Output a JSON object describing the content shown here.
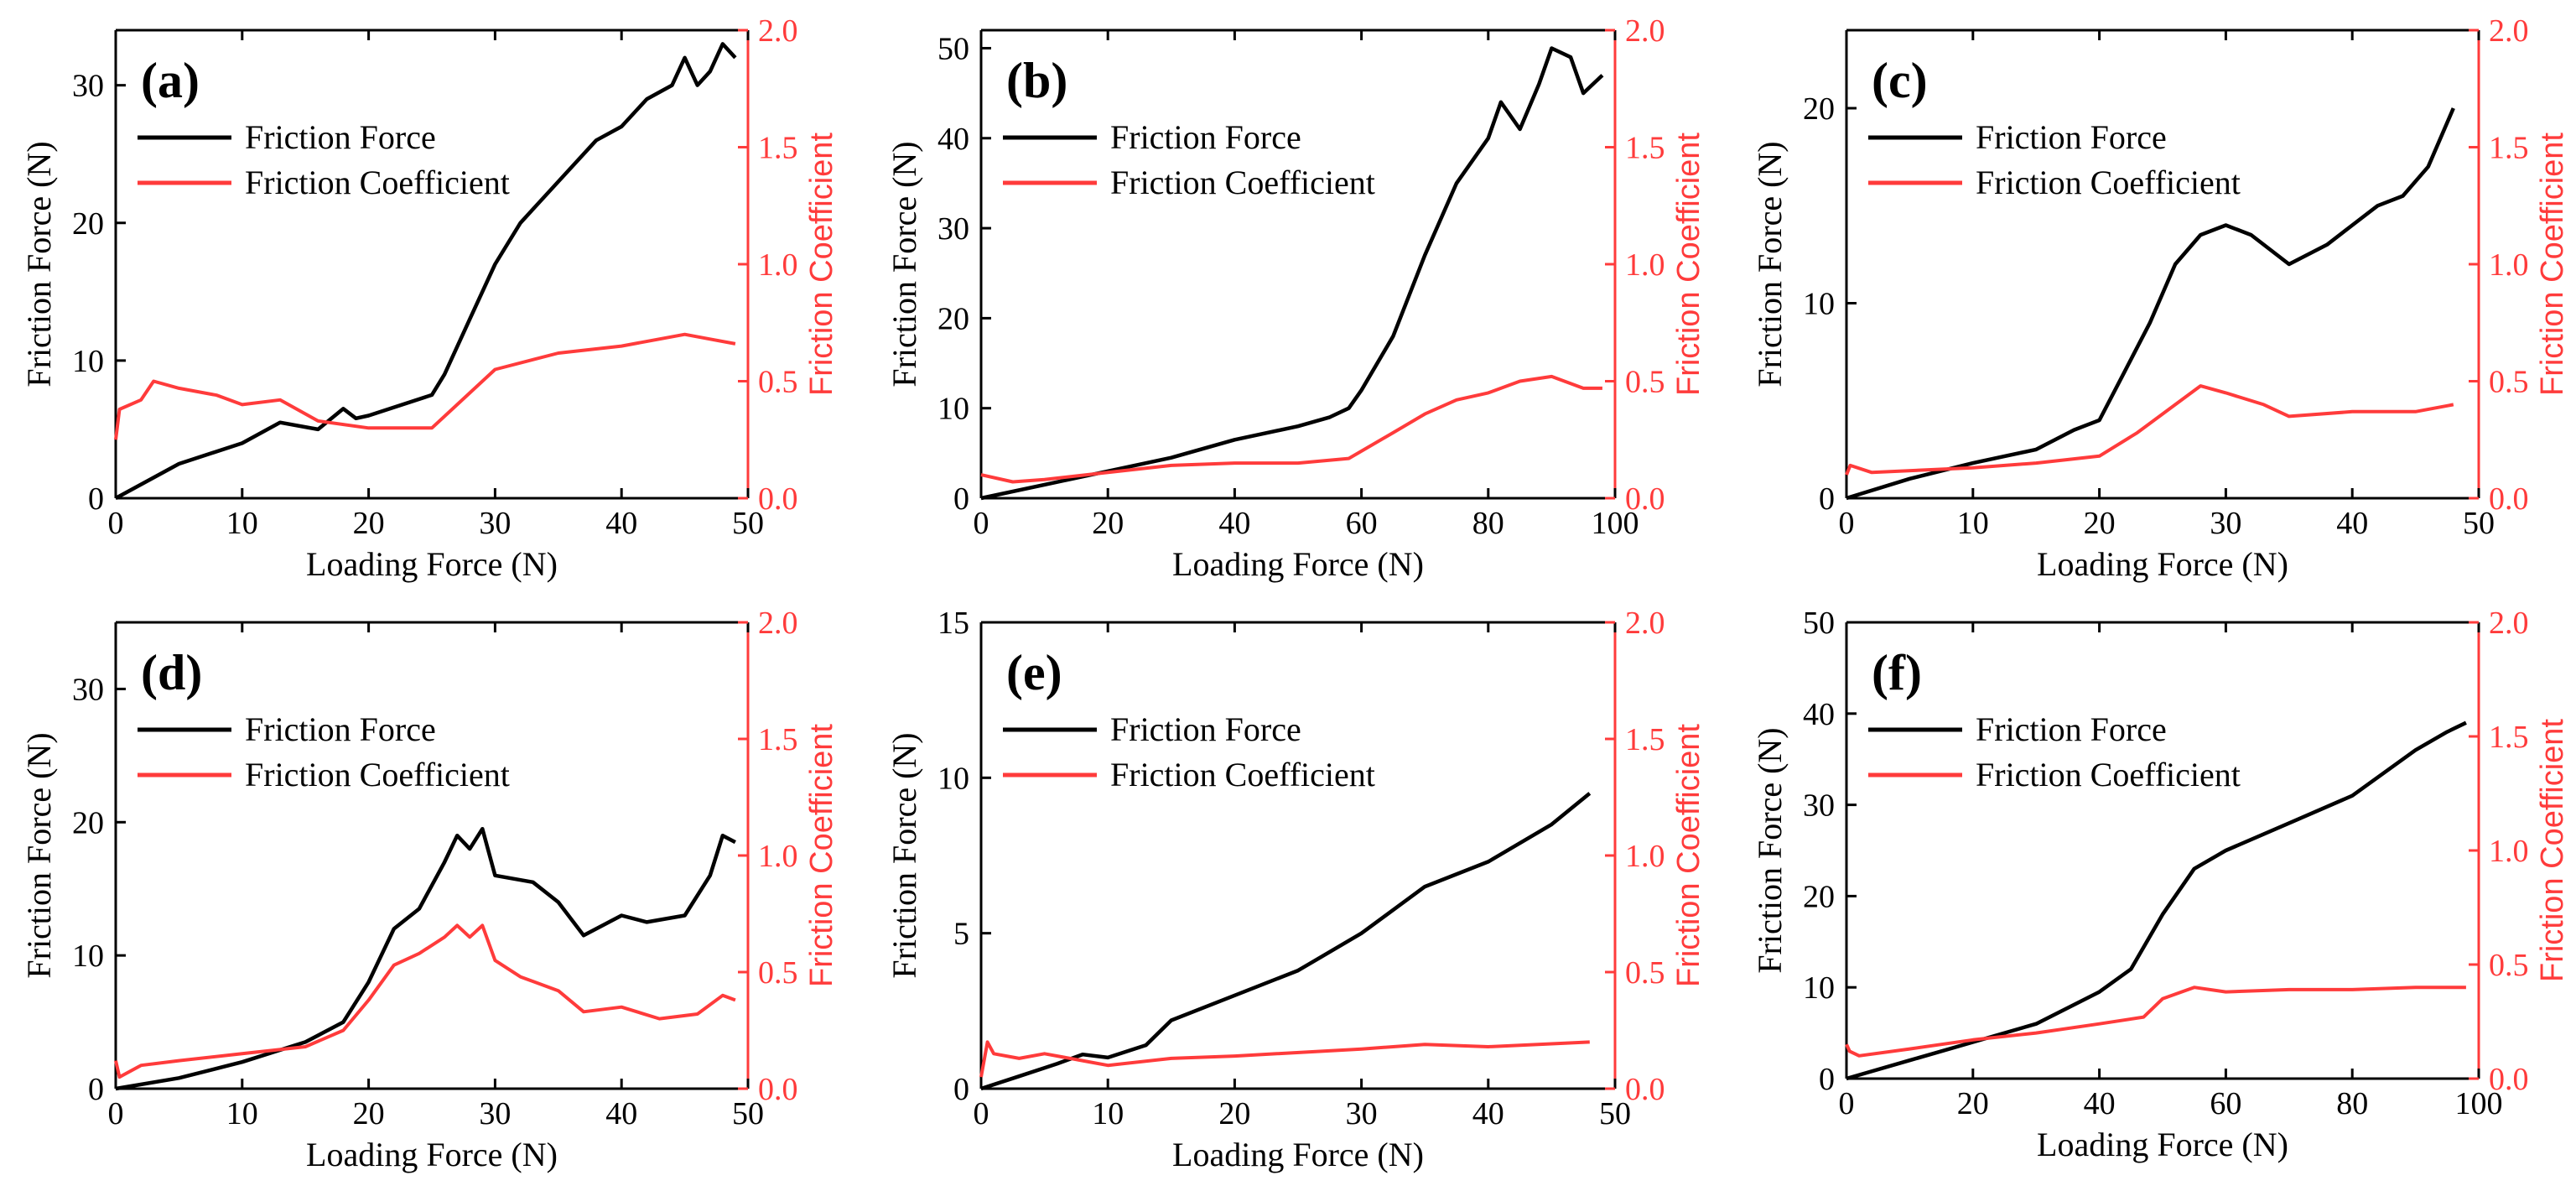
{
  "figure": {
    "description_labels": [
      "(a)",
      "(b)",
      "(c)",
      "(d)",
      "(e)",
      "(f)"
    ]
  },
  "colors": {
    "friction_force": "#000000",
    "friction_coefficient": "#ff3b3b"
  },
  "chart_data": [
    {
      "type": "line",
      "panel": "(a)",
      "xlabel": "Loading Force (N)",
      "ylabel": "Friction Force (N)",
      "y2label": "Friction Coefficient",
      "xlim": [
        0,
        50
      ],
      "ylim": [
        0,
        34
      ],
      "y2lim": [
        0,
        2.0
      ],
      "xticks": [
        0,
        10,
        20,
        30,
        40,
        50
      ],
      "yticks": [
        0,
        10,
        20,
        30
      ],
      "y2ticks": [
        0.0,
        0.5,
        1.0,
        1.5,
        2.0
      ],
      "legend": [
        "Friction Force",
        "Friction Coefficient"
      ],
      "series": [
        {
          "name": "Friction Force",
          "axis": "left",
          "x": [
            0,
            5,
            10,
            13,
            16,
            18,
            19,
            20,
            25,
            26,
            28,
            30,
            32,
            35,
            38,
            40,
            42,
            44,
            45,
            46,
            47,
            48,
            49
          ],
          "y": [
            0,
            2.5,
            4,
            5.5,
            5,
            6.5,
            5.8,
            6,
            7.5,
            9,
            13,
            17,
            20,
            23,
            26,
            27,
            29,
            30,
            32,
            30,
            31,
            33,
            32
          ]
        },
        {
          "name": "Friction Coefficient",
          "axis": "right",
          "x": [
            0,
            0.3,
            2,
            3,
            5,
            8,
            10,
            13,
            16,
            20,
            25,
            27,
            30,
            35,
            40,
            45,
            47,
            49
          ],
          "y": [
            0.25,
            0.38,
            0.42,
            0.5,
            0.47,
            0.44,
            0.4,
            0.42,
            0.33,
            0.3,
            0.3,
            0.4,
            0.55,
            0.62,
            0.65,
            0.7,
            0.68,
            0.66
          ]
        }
      ]
    },
    {
      "type": "line",
      "panel": "(b)",
      "xlabel": "Loading Force (N)",
      "ylabel": "Friction Force (N)",
      "y2label": "Friction Coefficient",
      "xlim": [
        0,
        100
      ],
      "ylim": [
        0,
        52
      ],
      "y2lim": [
        0,
        2.0
      ],
      "xticks": [
        0,
        20,
        40,
        60,
        80,
        100
      ],
      "yticks": [
        0,
        10,
        20,
        30,
        40,
        50
      ],
      "y2ticks": [
        0.0,
        0.5,
        1.0,
        1.5,
        2.0
      ],
      "legend": [
        "Friction Force",
        "Friction Coefficient"
      ],
      "series": [
        {
          "name": "Friction Force",
          "axis": "left",
          "x": [
            0,
            10,
            20,
            30,
            40,
            50,
            55,
            58,
            60,
            65,
            70,
            75,
            80,
            82,
            85,
            88,
            90,
            93,
            95,
            98
          ],
          "y": [
            0,
            1.5,
            3,
            4.5,
            6.5,
            8,
            9,
            10,
            12,
            18,
            27,
            35,
            40,
            44,
            41,
            46,
            50,
            49,
            45,
            47
          ]
        },
        {
          "name": "Friction Coefficient",
          "axis": "right",
          "x": [
            0,
            5,
            10,
            20,
            30,
            40,
            50,
            58,
            65,
            70,
            75,
            80,
            85,
            90,
            95,
            98
          ],
          "y": [
            0.1,
            0.07,
            0.08,
            0.11,
            0.14,
            0.15,
            0.15,
            0.17,
            0.28,
            0.36,
            0.42,
            0.45,
            0.5,
            0.52,
            0.47,
            0.47
          ]
        }
      ]
    },
    {
      "type": "line",
      "panel": "(c)",
      "xlabel": "Loading Force (N)",
      "ylabel": "Friction Force (N)",
      "y2label": "Friction Coefficient",
      "xlim": [
        0,
        50
      ],
      "ylim": [
        0,
        24
      ],
      "y2lim": [
        0,
        2.0
      ],
      "xticks": [
        0,
        10,
        20,
        30,
        40,
        50
      ],
      "yticks": [
        0,
        10,
        20
      ],
      "y2ticks": [
        0.0,
        0.5,
        1.0,
        1.5,
        2.0
      ],
      "legend": [
        "Friction Force",
        "Friction Coefficient"
      ],
      "series": [
        {
          "name": "Friction Force",
          "axis": "left",
          "x": [
            0,
            5,
            10,
            15,
            18,
            20,
            22,
            24,
            26,
            28,
            30,
            32,
            35,
            38,
            40,
            42,
            44,
            46,
            48
          ],
          "y": [
            0,
            1,
            1.8,
            2.5,
            3.5,
            4,
            6.5,
            9,
            12,
            13.5,
            14,
            13.5,
            12,
            13,
            14,
            15,
            15.5,
            17,
            20
          ]
        },
        {
          "name": "Friction Coefficient",
          "axis": "right",
          "x": [
            0,
            0.3,
            2,
            10,
            15,
            20,
            23,
            26,
            28,
            30,
            33,
            35,
            40,
            45,
            48
          ],
          "y": [
            0.1,
            0.14,
            0.11,
            0.13,
            0.15,
            0.18,
            0.28,
            0.4,
            0.48,
            0.45,
            0.4,
            0.35,
            0.37,
            0.37,
            0.4
          ]
        }
      ]
    },
    {
      "type": "line",
      "panel": "(d)",
      "xlabel": "Loading Force (N)",
      "ylabel": "Friction Force (N)",
      "y2label": "Friction Coefficient",
      "xlim": [
        0,
        50
      ],
      "ylim": [
        0,
        35
      ],
      "y2lim": [
        0,
        2.0
      ],
      "xticks": [
        0,
        10,
        20,
        30,
        40,
        50
      ],
      "yticks": [
        0,
        10,
        20,
        30
      ],
      "y2ticks": [
        0.0,
        0.5,
        1.0,
        1.5,
        2.0
      ],
      "legend": [
        "Friction Force",
        "Friction Coefficient"
      ],
      "series": [
        {
          "name": "Friction Force",
          "axis": "left",
          "x": [
            0,
            5,
            10,
            15,
            18,
            20,
            22,
            24,
            26,
            27,
            28,
            29,
            30,
            33,
            35,
            37,
            40,
            42,
            45,
            47,
            48,
            49
          ],
          "y": [
            0,
            0.8,
            2,
            3.5,
            5,
            8,
            12,
            13.5,
            17,
            19,
            18,
            19.5,
            16,
            15.5,
            14,
            11.5,
            13,
            12.5,
            13,
            16,
            19,
            18.5
          ]
        },
        {
          "name": "Friction Coefficient",
          "axis": "right",
          "x": [
            0,
            0.3,
            2,
            5,
            10,
            15,
            18,
            20,
            22,
            24,
            26,
            27,
            28,
            29,
            30,
            32,
            35,
            37,
            40,
            43,
            46,
            48,
            49
          ],
          "y": [
            0.12,
            0.05,
            0.1,
            0.12,
            0.15,
            0.18,
            0.25,
            0.38,
            0.53,
            0.58,
            0.65,
            0.7,
            0.65,
            0.7,
            0.55,
            0.48,
            0.42,
            0.33,
            0.35,
            0.3,
            0.32,
            0.4,
            0.38
          ]
        }
      ]
    },
    {
      "type": "line",
      "panel": "(e)",
      "xlabel": "Loading Force (N)",
      "ylabel": "Friction Force (N)",
      "y2label": "Friction Coefficient",
      "xlim": [
        0,
        50
      ],
      "ylim": [
        0,
        15
      ],
      "y2lim": [
        0,
        2.0
      ],
      "xticks": [
        0,
        10,
        20,
        30,
        40,
        50
      ],
      "yticks": [
        0,
        5,
        10,
        15
      ],
      "y2ticks": [
        0.0,
        0.5,
        1.0,
        1.5,
        2.0
      ],
      "legend": [
        "Friction Force",
        "Friction Coefficient"
      ],
      "series": [
        {
          "name": "Friction Force",
          "axis": "left",
          "x": [
            0,
            3,
            6,
            8,
            10,
            13,
            15,
            20,
            25,
            30,
            35,
            40,
            45,
            48
          ],
          "y": [
            0,
            0.4,
            0.8,
            1.1,
            1.0,
            1.4,
            2.2,
            3,
            3.8,
            5,
            6.5,
            7.3,
            8.5,
            9.5
          ]
        },
        {
          "name": "Friction Coefficient",
          "axis": "right",
          "x": [
            0,
            0.5,
            1,
            3,
            5,
            8,
            10,
            15,
            20,
            30,
            35,
            40,
            48
          ],
          "y": [
            0.05,
            0.2,
            0.15,
            0.13,
            0.15,
            0.12,
            0.1,
            0.13,
            0.14,
            0.17,
            0.19,
            0.18,
            0.2
          ]
        }
      ]
    },
    {
      "type": "line",
      "panel": "(f)",
      "xlabel": "Loading Force (N)",
      "ylabel": "Friction Force (N)",
      "y2label": "Friction Coefficient",
      "xlim": [
        0,
        100
      ],
      "ylim": [
        0,
        50
      ],
      "y2lim": [
        0,
        2.0
      ],
      "xticks": [
        0,
        20,
        40,
        60,
        80,
        100
      ],
      "yticks": [
        0,
        10,
        20,
        30,
        40,
        50
      ],
      "y2ticks": [
        0.0,
        0.5,
        1.0,
        1.5,
        2.0
      ],
      "legend": [
        "Friction Force",
        "Friction Coefficient"
      ],
      "series": [
        {
          "name": "Friction Force",
          "axis": "left",
          "x": [
            0,
            10,
            20,
            30,
            40,
            45,
            50,
            55,
            60,
            70,
            80,
            90,
            95,
            98
          ],
          "y": [
            0,
            2,
            4,
            6,
            9.5,
            12,
            18,
            23,
            25,
            28,
            31,
            36,
            38,
            39
          ]
        },
        {
          "name": "Friction Coefficient",
          "axis": "right",
          "x": [
            0,
            0.5,
            2,
            10,
            20,
            30,
            40,
            47,
            50,
            55,
            60,
            70,
            80,
            90,
            98
          ],
          "y": [
            0.15,
            0.12,
            0.1,
            0.13,
            0.17,
            0.2,
            0.24,
            0.27,
            0.35,
            0.4,
            0.38,
            0.39,
            0.39,
            0.4,
            0.4
          ]
        }
      ]
    }
  ]
}
